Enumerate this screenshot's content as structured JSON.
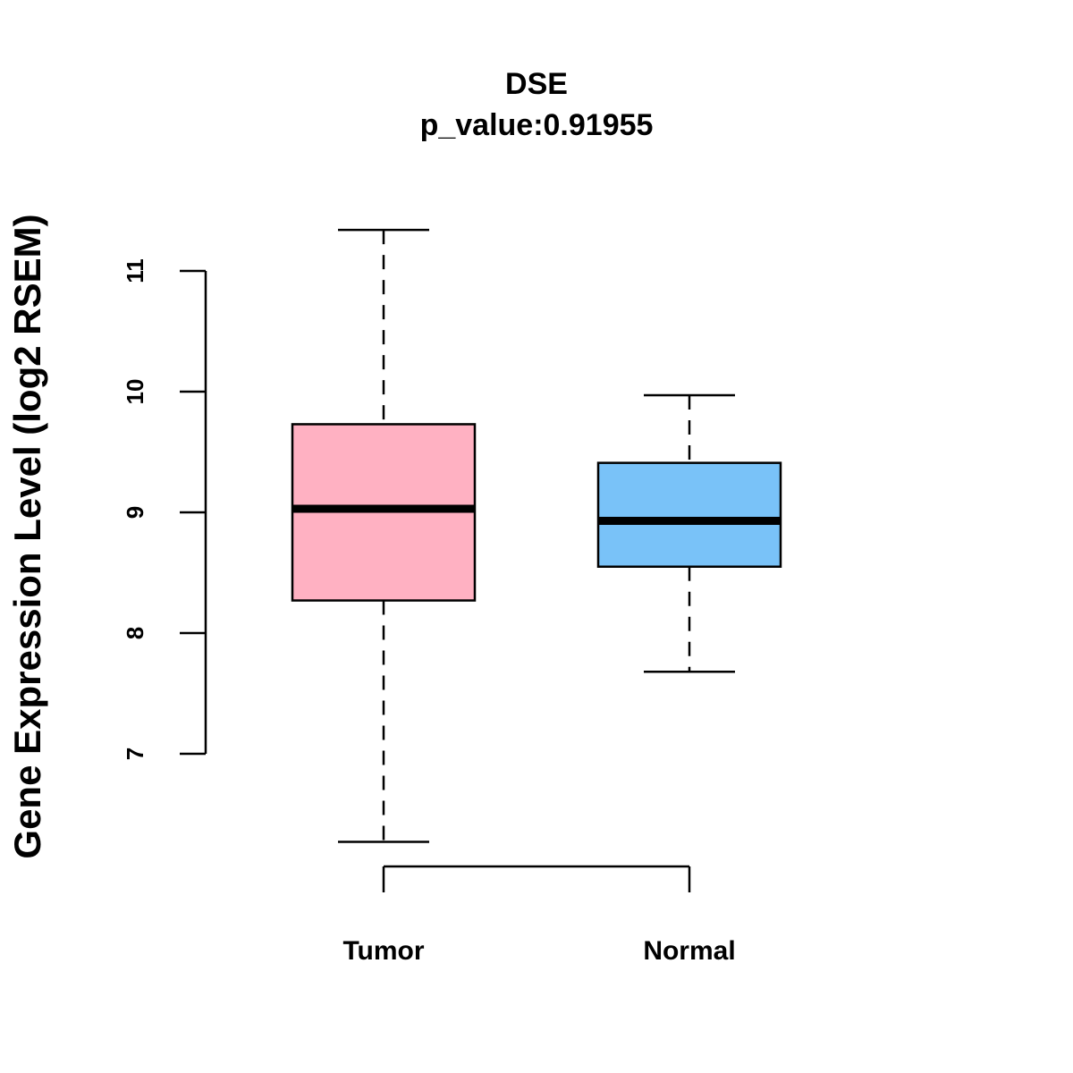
{
  "chart_data": {
    "type": "boxplot",
    "title": "DSE",
    "subtitle": "p_value:0.91955",
    "xlabel": "",
    "ylabel": "Gene Expression Level (log2 RSEM)",
    "ylim": [
      7,
      11
    ],
    "y_ticks": [
      "7",
      "8",
      "9",
      "10",
      "11"
    ],
    "categories": [
      "Tumor",
      "Normal"
    ],
    "series": [
      {
        "name": "Tumor",
        "color": "#FFB1C2",
        "min": 6.27,
        "q1": 8.27,
        "median": 9.03,
        "q3": 9.73,
        "max": 11.34
      },
      {
        "name": "Normal",
        "color": "#79C2F8",
        "min": 7.68,
        "q1": 8.55,
        "median": 8.93,
        "q3": 9.41,
        "max": 9.97
      }
    ],
    "grid": false,
    "legend": "none"
  }
}
